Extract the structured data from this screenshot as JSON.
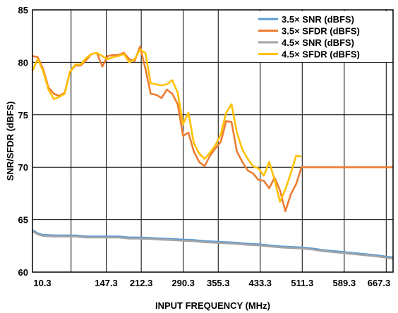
{
  "chart_data": {
    "type": "line",
    "xlabel": "INPUT FREQUENCY (MHz)",
    "ylabel": "SNR/SFDR (dBFS)",
    "ylim": [
      60,
      85
    ],
    "yticks": [
      60,
      65,
      70,
      75,
      80,
      85
    ],
    "xlim": [
      10.3,
      680
    ],
    "xtick_labels": [
      "10.3",
      "147.3",
      "212.3",
      "290.3",
      "355.3",
      "433.3",
      "511.3",
      "589.3",
      "667.3"
    ],
    "xtick_values": [
      10.3,
      82,
      147.3,
      212.3,
      290.3,
      355.3,
      433.3,
      511.3,
      589.3,
      667.3
    ],
    "grid": true,
    "legend": "top-right",
    "series": [
      {
        "name": "3.5× SNR (dBFS)",
        "color": "#5b9bd5",
        "x": [
          10.3,
          20,
          30,
          50,
          70,
          90,
          110,
          130,
          150,
          170,
          190,
          210,
          230,
          250,
          270,
          290,
          310,
          330,
          350,
          370,
          390,
          410,
          430,
          450,
          470,
          490,
          510,
          530,
          550,
          570,
          590,
          610,
          630,
          650,
          670,
          680
        ],
        "y": [
          64.0,
          63.7,
          63.55,
          63.5,
          63.5,
          63.5,
          63.4,
          63.4,
          63.4,
          63.4,
          63.3,
          63.3,
          63.25,
          63.2,
          63.15,
          63.1,
          63.05,
          62.95,
          62.9,
          62.85,
          62.8,
          62.7,
          62.65,
          62.55,
          62.45,
          62.4,
          62.35,
          62.25,
          62.1,
          62.0,
          61.9,
          61.8,
          61.7,
          61.6,
          61.45,
          61.4
        ]
      },
      {
        "name": "3.5× SFDR (dBFS)",
        "color": "#ed7d31",
        "x": [
          10.3,
          20,
          30,
          40,
          50,
          60,
          70,
          80,
          90,
          100,
          110,
          120,
          130,
          140,
          150,
          160,
          170,
          180,
          190,
          200,
          210,
          220,
          230,
          240,
          250,
          260,
          270,
          280,
          290,
          300,
          310,
          320,
          330,
          340,
          350,
          360,
          370,
          380,
          390,
          400,
          410,
          420,
          430,
          440,
          450,
          460,
          470,
          480,
          490,
          500,
          510,
          520,
          530,
          540,
          550,
          560,
          570,
          580,
          590,
          600,
          610,
          620,
          630,
          640,
          650,
          660,
          670,
          680
        ],
        "y": [
          80.6,
          80.5,
          79.4,
          77.6,
          77.0,
          76.8,
          77.1,
          79.1,
          79.7,
          79.7,
          80.2,
          80.8,
          80.9,
          79.6,
          80.6,
          80.7,
          80.7,
          80.9,
          80.3,
          80.1,
          81.5,
          79.4,
          77.0,
          76.9,
          76.6,
          77.4,
          77.0,
          76.0,
          73.0,
          73.3,
          71.5,
          70.5,
          70.1,
          71.1,
          71.8,
          72.4,
          74.4,
          74.3,
          71.5,
          70.5,
          69.7,
          69.4,
          68.8,
          68.7,
          68.0,
          69.0,
          67.8,
          65.8,
          67.4,
          68.4,
          70.0,
          70.0,
          70.0,
          70.0,
          70.0,
          70.0,
          70.0,
          70.0,
          70.0,
          70.0,
          70.0,
          70.0,
          70.0,
          70.0,
          70.0,
          70.0,
          70.0,
          70.0
        ]
      },
      {
        "name": "4.5× SNR (dBFS)",
        "color": "#a5a5a5",
        "x": [
          10.3,
          20,
          30,
          50,
          70,
          90,
          110,
          130,
          150,
          170,
          190,
          210,
          230,
          250,
          270,
          290,
          310,
          330,
          350,
          370,
          390,
          410,
          430,
          450,
          470,
          490,
          510,
          530,
          550,
          570,
          590,
          610,
          630,
          650,
          670,
          680
        ],
        "y": [
          63.9,
          63.6,
          63.45,
          63.4,
          63.4,
          63.4,
          63.3,
          63.3,
          63.3,
          63.3,
          63.2,
          63.2,
          63.15,
          63.1,
          63.05,
          63.0,
          62.95,
          62.85,
          62.8,
          62.75,
          62.7,
          62.6,
          62.55,
          62.45,
          62.35,
          62.3,
          62.25,
          62.15,
          62.0,
          61.9,
          61.8,
          61.7,
          61.6,
          61.5,
          61.35,
          61.3
        ]
      },
      {
        "name": "4.5× SFDR (dBFS)",
        "color": "#ffc000",
        "x": [
          10.3,
          20,
          30,
          40,
          50,
          60,
          70,
          80,
          90,
          100,
          110,
          120,
          130,
          140,
          150,
          160,
          170,
          180,
          190,
          200,
          210,
          220,
          230,
          240,
          250,
          260,
          270,
          280,
          290,
          300,
          310,
          320,
          330,
          340,
          350,
          360,
          370,
          380,
          390,
          400,
          410,
          420,
          430,
          440,
          450,
          460,
          470,
          480,
          490,
          500,
          510
        ],
        "y": [
          79.2,
          80.3,
          79.2,
          77.4,
          76.5,
          76.7,
          77.0,
          79.1,
          79.8,
          79.8,
          80.4,
          80.8,
          80.9,
          80.6,
          80.3,
          80.5,
          80.6,
          80.8,
          80.0,
          80.3,
          81.2,
          80.9,
          78.0,
          77.9,
          77.8,
          77.9,
          78.3,
          77.1,
          74.1,
          75.2,
          72.3,
          71.3,
          70.8,
          71.4,
          72.1,
          73.1,
          75.2,
          76.0,
          73.3,
          71.7,
          70.8,
          70.1,
          69.9,
          69.2,
          70.5,
          68.8,
          66.7,
          67.9,
          69.4,
          71.1,
          71.0
        ]
      }
    ]
  }
}
